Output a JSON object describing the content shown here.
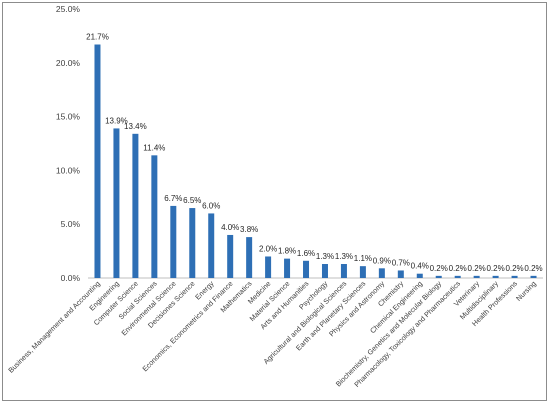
{
  "chart_data": {
    "type": "bar",
    "title": "",
    "xlabel": "",
    "ylabel": "",
    "ylim": [
      0,
      25
    ],
    "yticks": [
      0,
      5,
      10,
      15,
      20,
      25
    ],
    "ytick_labels": [
      "0.0%",
      "5.0%",
      "10.0%",
      "15.0%",
      "20.0%",
      "25.0%"
    ],
    "grid": false,
    "legend": "none",
    "bar_color": "#2e6fb5",
    "categories": [
      "Business, Management and Accounting",
      "Engineering",
      "Computer Science",
      "Social Sciences",
      "Environmental Science",
      "Decisiones Science",
      "Energy",
      "Economics, Econometrics and Finance",
      "Mathematics",
      "Medicine",
      "Material Science",
      "Arts and Humanities",
      "Psychology",
      "Agricultural and Biological Sciences",
      "Earth and Planetary Sciences",
      "Physics and Astronomy",
      "Chemistry",
      "Chemical Engineering",
      "Biochemistry, Genetics and Molecular Biology",
      "Pharmacology, Toxicology and Pharmaceutics",
      "Veterinary",
      "Multidisciplinary",
      "Health Professions",
      "Nursing"
    ],
    "values": [
      21.7,
      13.9,
      13.4,
      11.4,
      6.7,
      6.5,
      6.0,
      4.0,
      3.8,
      2.0,
      1.8,
      1.6,
      1.3,
      1.3,
      1.1,
      0.9,
      0.7,
      0.4,
      0.2,
      0.2,
      0.2,
      0.2,
      0.2,
      0.2
    ],
    "data_labels": [
      "21.7%",
      "13.9%",
      "13.4%",
      "11.4%",
      "6.7%",
      "6.5%",
      "6.0%",
      "4.0%",
      "3.8%",
      "2.0%",
      "1.8%",
      "1.6%",
      "1.3%",
      "1.3%",
      "1.1%",
      "0.9%",
      "0.7%",
      "0.4%",
      "0.2%",
      "0.2%",
      "0.2%",
      "0.2%",
      "0.2%",
      "0.2%"
    ]
  }
}
